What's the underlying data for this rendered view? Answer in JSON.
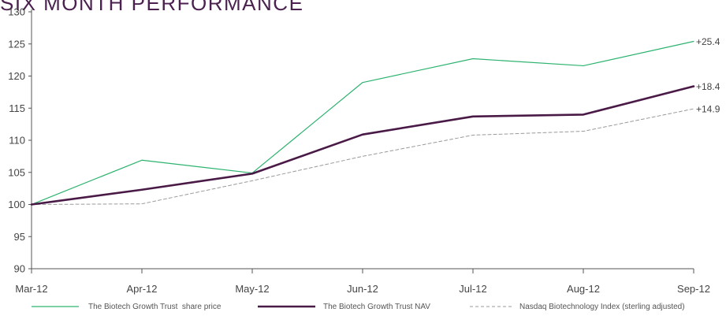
{
  "chart_data": {
    "type": "line",
    "title": "SIX MONTH PERFORMANCE",
    "categories": [
      "Mar-12",
      "Apr-12",
      "May-12",
      "Jun-12",
      "Jul-12",
      "Aug-12",
      "Sep-12"
    ],
    "ylim": [
      90,
      130
    ],
    "yticks": [
      90,
      95,
      100,
      105,
      110,
      115,
      120,
      125,
      130
    ],
    "grid": false,
    "legend_position": "bottom",
    "series": [
      {
        "name": "The Biotech Growth Trust  share price",
        "values": [
          100,
          106.9,
          104.9,
          119.0,
          122.7,
          121.6,
          125.4
        ],
        "color": "#2db36f",
        "end_label": "+25.4"
      },
      {
        "name": "The Biotech Growth Trust NAV",
        "values": [
          100,
          102.3,
          104.8,
          110.9,
          113.7,
          114.0,
          118.4
        ],
        "color": "#4a1a47",
        "end_label": "+18.4"
      },
      {
        "name": "Nasdaq Biotechnology Index (sterling adjusted)",
        "values": [
          100,
          100.1,
          103.7,
          107.5,
          110.8,
          111.4,
          114.9
        ],
        "color": "#9a9a9a",
        "end_label": "+14.9"
      }
    ]
  }
}
